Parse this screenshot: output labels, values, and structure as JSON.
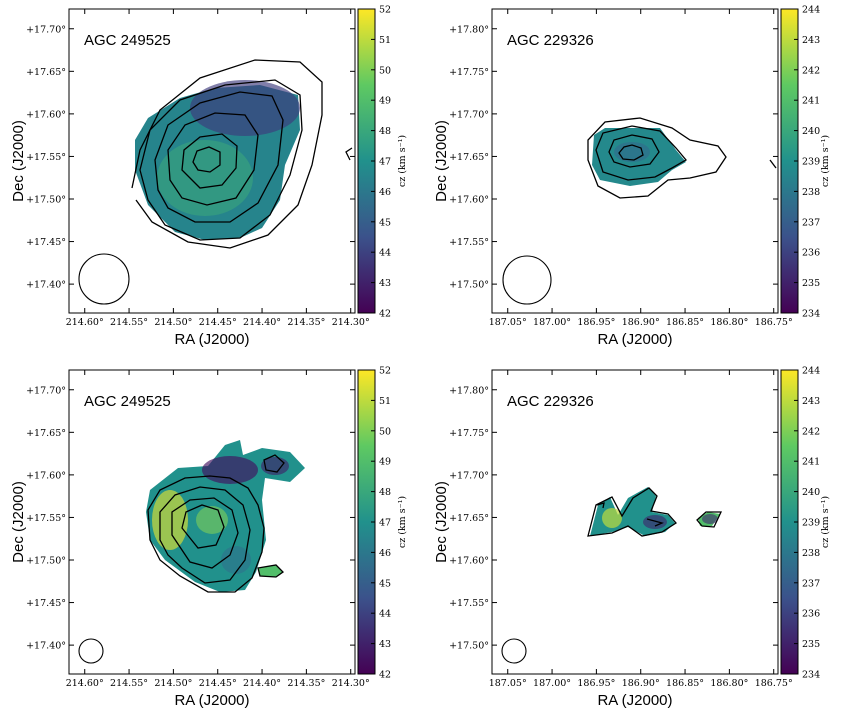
{
  "figure": {
    "colormap": [
      "#440154",
      "#3b528b",
      "#21918c",
      "#5ec962",
      "#fde725"
    ]
  },
  "chart_data": [
    {
      "type": "heatmap",
      "panel": "top-left",
      "label": "AGC 249525",
      "xlabel": "RA (J2000)",
      "ylabel": "Dec (J2000)",
      "xticks": [
        "214.60°",
        "214.55°",
        "214.50°",
        "214.45°",
        "214.40°",
        "214.35°",
        "214.30°"
      ],
      "yticks": [
        "+17.40°",
        "+17.45°",
        "+17.50°",
        "+17.55°",
        "+17.60°",
        "+17.65°",
        "+17.70°"
      ],
      "colorbar": {
        "label": "cz (km s⁻¹)",
        "min": 42,
        "max": 52,
        "ticks": [
          "42",
          "43",
          "44",
          "45",
          "46",
          "47",
          "48",
          "49",
          "50",
          "51",
          "52"
        ]
      },
      "field_value": 46.5,
      "beam": "large"
    },
    {
      "type": "heatmap",
      "panel": "top-right",
      "label": "AGC 229326",
      "xlabel": "RA (J2000)",
      "ylabel": "Dec (J2000)",
      "xticks": [
        "187.05°",
        "187.00°",
        "186.95°",
        "186.90°",
        "186.85°",
        "186.80°",
        "186.75°"
      ],
      "yticks": [
        "+17.50°",
        "+17.55°",
        "+17.60°",
        "+17.65°",
        "+17.70°",
        "+17.75°",
        "+17.80°"
      ],
      "colorbar": {
        "label": "cz (km s⁻¹)",
        "min": 234,
        "max": 244,
        "ticks": [
          "234",
          "235",
          "236",
          "237",
          "238",
          "239",
          "240",
          "241",
          "242",
          "243",
          "244"
        ]
      },
      "field_value": 238.7,
      "beam": "large"
    },
    {
      "type": "heatmap",
      "panel": "bottom-left",
      "label": "AGC 249525",
      "xlabel": "RA (J2000)",
      "ylabel": "Dec (J2000)",
      "xticks": [
        "214.60°",
        "214.55°",
        "214.50°",
        "214.45°",
        "214.40°",
        "214.35°",
        "214.30°"
      ],
      "yticks": [
        "+17.40°",
        "+17.45°",
        "+17.50°",
        "+17.55°",
        "+17.60°",
        "+17.65°",
        "+17.70°"
      ],
      "colorbar": {
        "label": "cz (km s⁻¹)",
        "min": 42,
        "max": 52,
        "ticks": [
          "42",
          "43",
          "44",
          "45",
          "46",
          "47",
          "48",
          "49",
          "50",
          "51",
          "52"
        ]
      },
      "field_value": 47,
      "beam": "small"
    },
    {
      "type": "heatmap",
      "panel": "bottom-right",
      "label": "AGC 229326",
      "xlabel": "RA (J2000)",
      "ylabel": "Dec (J2000)",
      "xticks": [
        "187.05°",
        "187.00°",
        "186.95°",
        "186.90°",
        "186.85°",
        "186.80°",
        "186.75°"
      ],
      "yticks": [
        "+17.50°",
        "+17.55°",
        "+17.60°",
        "+17.65°",
        "+17.70°",
        "+17.75°",
        "+17.80°"
      ],
      "colorbar": {
        "label": "cz (km s⁻¹)",
        "min": 234,
        "max": 244,
        "ticks": [
          "234",
          "235",
          "236",
          "237",
          "238",
          "239",
          "240",
          "241",
          "242",
          "243",
          "244"
        ]
      },
      "field_value": 239,
      "beam": "small"
    }
  ]
}
